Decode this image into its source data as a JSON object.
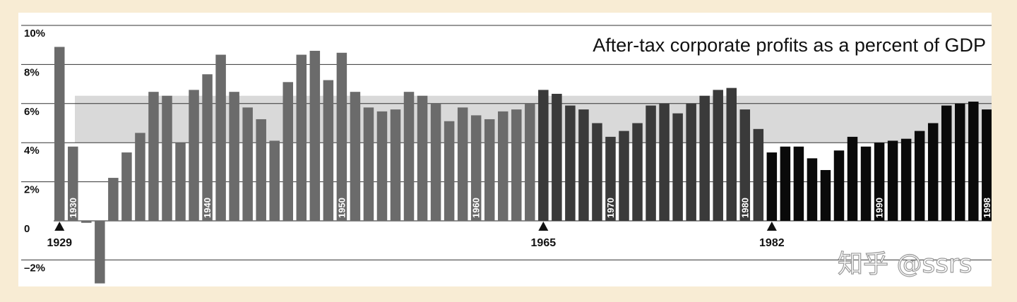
{
  "watermark": "知乎 @ssrs",
  "chart_data": {
    "type": "bar",
    "title": "After-tax corporate profits as a percent of GDP",
    "xlabel": "",
    "ylabel": "",
    "ylim": [
      -3.2,
      10
    ],
    "y_ticks": [
      {
        "value": 10,
        "label": "10%"
      },
      {
        "value": 8,
        "label": "8%"
      },
      {
        "value": 6,
        "label": "6%"
      },
      {
        "value": 4,
        "label": "4%"
      },
      {
        "value": 2,
        "label": "2%"
      },
      {
        "value": 0,
        "label": "0"
      },
      {
        "value": -2,
        "label": "–2%"
      }
    ],
    "grid": true,
    "shaded_band": {
      "from": 4.0,
      "to": 6.4
    },
    "start_year": 1929,
    "end_year": 1998,
    "decade_labels": [
      {
        "year": 1930,
        "label": "1930"
      },
      {
        "year": 1940,
        "label": "1940"
      },
      {
        "year": 1950,
        "label": "1950"
      },
      {
        "year": 1960,
        "label": "1960"
      },
      {
        "year": 1970,
        "label": "1970"
      },
      {
        "year": 1980,
        "label": "1980"
      },
      {
        "year": 1990,
        "label": "1990"
      },
      {
        "year": 1998,
        "label": "1998"
      }
    ],
    "markers": [
      {
        "year": 1929,
        "label": "1929"
      },
      {
        "year": 1965,
        "label": "1965"
      },
      {
        "year": 1982,
        "label": "1982"
      }
    ],
    "series": [
      {
        "color": "#6b6b6b",
        "x": [
          1929,
          1930,
          1931,
          1932,
          1933,
          1934,
          1935,
          1936,
          1937,
          1938,
          1939,
          1940,
          1941,
          1942,
          1943,
          1944,
          1945,
          1946,
          1947,
          1948,
          1949,
          1950,
          1951,
          1952,
          1953,
          1954,
          1955,
          1956,
          1957,
          1958,
          1959,
          1960,
          1961,
          1962,
          1963,
          1964
        ],
        "values": [
          8.9,
          3.8,
          -0.1,
          -3.2,
          2.2,
          3.5,
          4.5,
          6.6,
          6.4,
          4.0,
          6.7,
          7.5,
          8.5,
          6.6,
          5.8,
          5.2,
          4.1,
          7.1,
          8.5,
          8.7,
          7.2,
          8.6,
          6.6,
          5.8,
          5.6,
          5.7,
          6.6,
          6.4,
          6.0,
          5.1,
          5.8,
          5.4,
          5.2,
          5.6,
          5.7,
          6.0
        ]
      },
      {
        "color": "#3a3a3a",
        "x": [
          1965,
          1966,
          1967,
          1968,
          1969,
          1970,
          1971,
          1972,
          1973,
          1974,
          1975,
          1976,
          1977,
          1978,
          1979,
          1980,
          1981
        ],
        "values": [
          6.7,
          6.5,
          5.9,
          5.7,
          5.0,
          4.3,
          4.6,
          5.0,
          5.9,
          6.0,
          5.5,
          6.0,
          6.4,
          6.7,
          6.8,
          5.7,
          4.7
        ]
      },
      {
        "color": "#0a0a0a",
        "x": [
          1982,
          1983,
          1984,
          1985,
          1986,
          1987,
          1988,
          1989,
          1990,
          1991,
          1992,
          1993,
          1994,
          1995,
          1996,
          1997,
          1998
        ],
        "values": [
          3.5,
          3.8,
          3.8,
          3.2,
          2.6,
          3.6,
          4.3,
          3.8,
          4.0,
          4.1,
          4.2,
          4.6,
          5.0,
          5.9,
          6.0,
          6.1,
          5.7
        ]
      }
    ]
  }
}
